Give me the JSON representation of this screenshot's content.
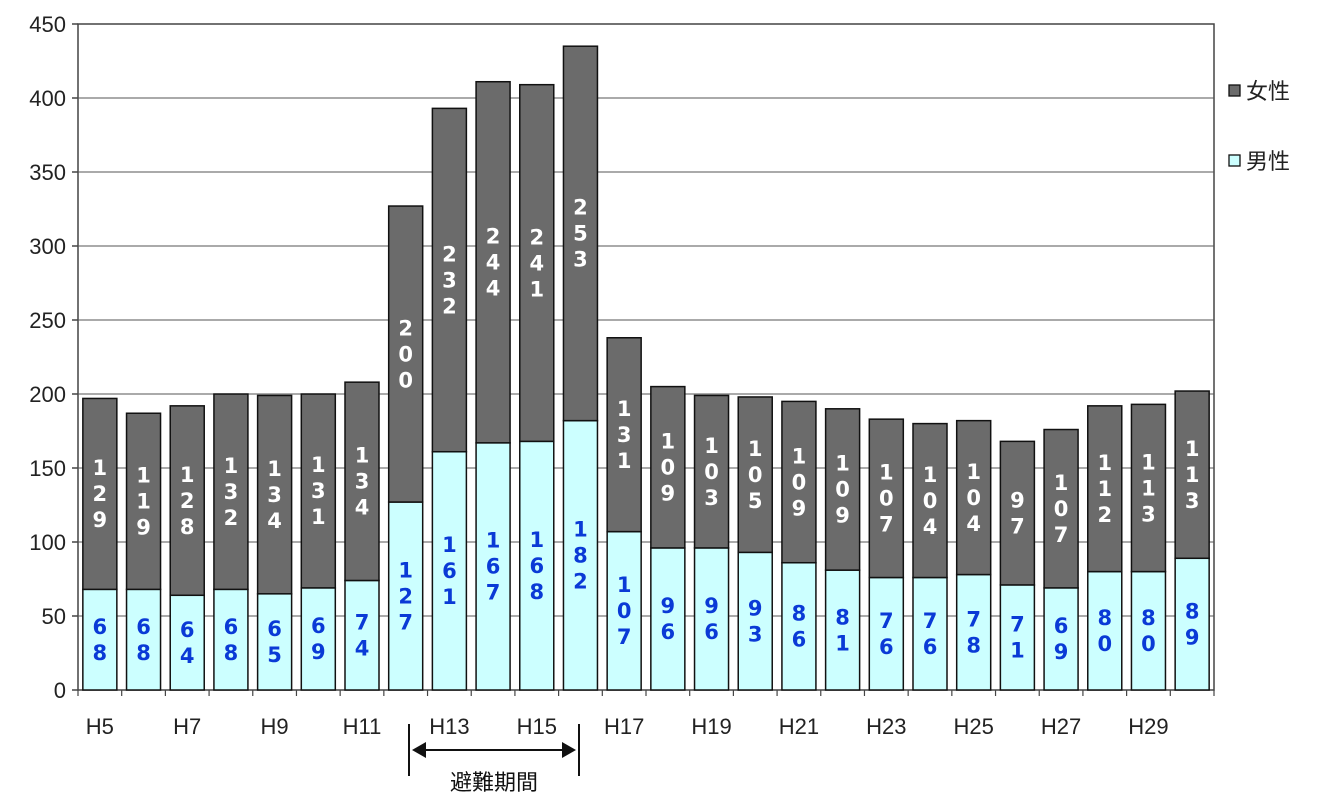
{
  "chart_data": {
    "type": "bar",
    "stacked": true,
    "categories": [
      "H5",
      "H6",
      "H7",
      "H8",
      "H9",
      "H10",
      "H11",
      "H12",
      "H13",
      "H14",
      "H15",
      "H16",
      "H17",
      "H18",
      "H19",
      "H20",
      "H21",
      "H22",
      "H23",
      "H24",
      "H25",
      "H26",
      "H27",
      "H28",
      "H29",
      "H30"
    ],
    "x_tick_labels": [
      "H5",
      "",
      "H7",
      "",
      "H9",
      "",
      "H11",
      "",
      "H13",
      "",
      "H15",
      "",
      "H17",
      "",
      "H19",
      "",
      "H21",
      "",
      "H23",
      "",
      "H25",
      "",
      "H27",
      "",
      "H29",
      ""
    ],
    "series": [
      {
        "name": "男性",
        "color": "#ccffff",
        "label_color": "#0a3ad6",
        "values": [
          68,
          68,
          64,
          68,
          65,
          69,
          74,
          127,
          161,
          167,
          168,
          182,
          107,
          96,
          96,
          93,
          86,
          81,
          76,
          76,
          78,
          71,
          69,
          80,
          80,
          89
        ]
      },
      {
        "name": "女性",
        "color": "#6b6b6b",
        "label_color": "#ffffff",
        "values": [
          129,
          119,
          128,
          132,
          134,
          131,
          134,
          200,
          232,
          244,
          241,
          253,
          131,
          109,
          103,
          105,
          109,
          109,
          107,
          104,
          104,
          97,
          107,
          112,
          113,
          113
        ]
      }
    ],
    "legend_order": [
      "女性",
      "男性"
    ],
    "legend_position": "right",
    "ylim": [
      0,
      450
    ],
    "yticks": [
      0,
      50,
      100,
      150,
      200,
      250,
      300,
      350,
      400,
      450
    ],
    "grid": true,
    "annotation": {
      "text": "避難期間",
      "from": "H13",
      "to": "H16"
    }
  }
}
